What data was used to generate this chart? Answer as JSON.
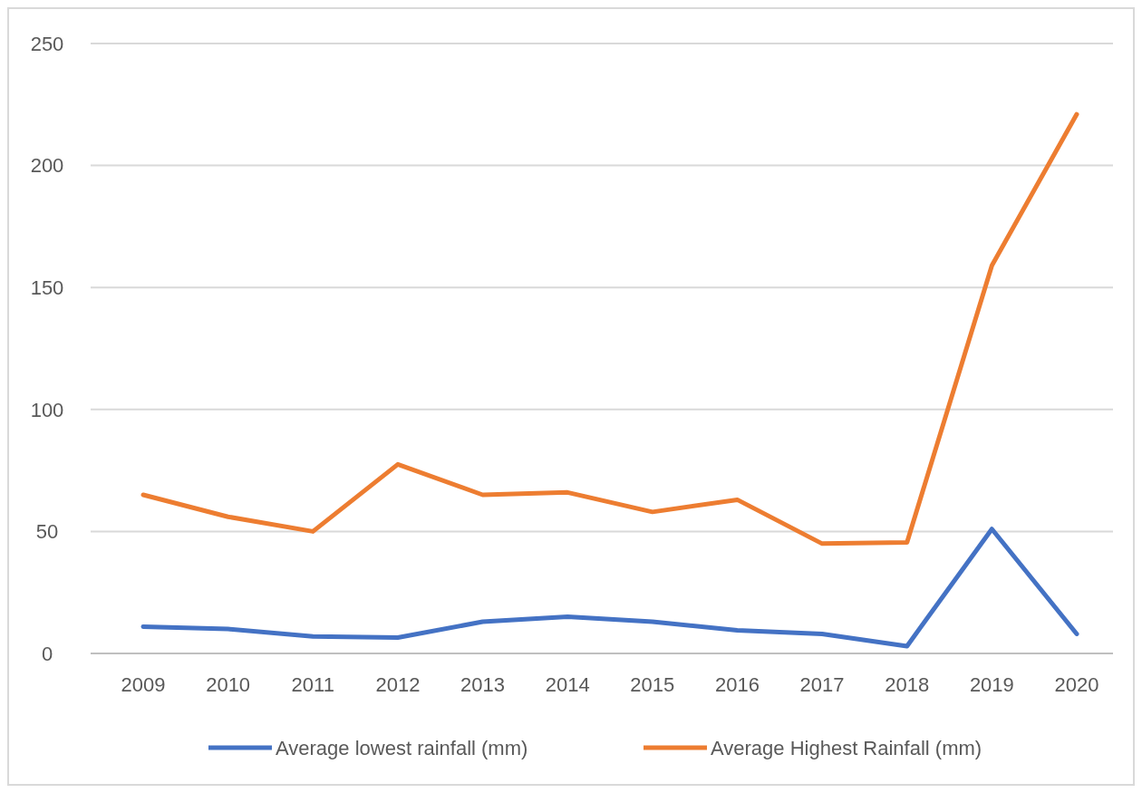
{
  "chart_data": {
    "type": "line",
    "categories": [
      "2009",
      "2010",
      "2011",
      "2012",
      "2013",
      "2014",
      "2015",
      "2016",
      "2017",
      "2018",
      "2019",
      "2020"
    ],
    "series": [
      {
        "name": "Average lowest rainfall (mm)",
        "color": "#4472c4",
        "values": [
          11,
          10,
          7,
          6.5,
          13,
          15,
          13,
          9.5,
          8,
          3,
          51,
          8
        ]
      },
      {
        "name": "Average Highest Rainfall (mm)",
        "color": "#ed7d31",
        "values": [
          65,
          56,
          50,
          77.5,
          65,
          66,
          58,
          63,
          45,
          45.5,
          159,
          221
        ]
      }
    ],
    "ylim": [
      0,
      250
    ],
    "yticks": [
      0,
      50,
      100,
      150,
      200,
      250
    ],
    "grid": "y",
    "legend": "bottom",
    "marker": "none",
    "line_style": "solid"
  }
}
